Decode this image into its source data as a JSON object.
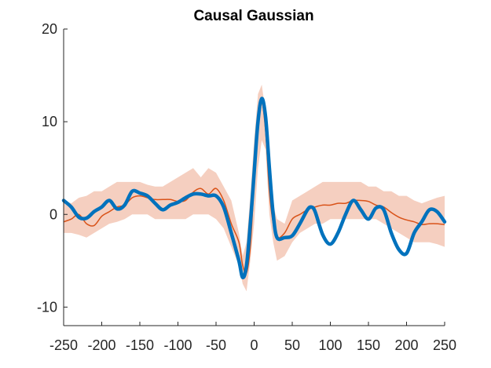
{
  "chart_data": {
    "type": "line",
    "title": "Causal Gaussian",
    "xlabel": "",
    "ylabel": "",
    "xlim": [
      -250,
      250
    ],
    "ylim": [
      -12,
      20
    ],
    "xticks": [
      -250,
      -200,
      -150,
      -100,
      -50,
      0,
      50,
      100,
      150,
      200,
      250
    ],
    "yticks": [
      -10,
      0,
      10,
      20
    ],
    "xtick_labels": [
      "-250",
      "-200",
      "-150",
      "-100",
      "-50",
      "0",
      "50",
      "100",
      "150",
      "200",
      "250"
    ],
    "ytick_labels": [
      "-10",
      "0",
      "10",
      "20"
    ],
    "grid": false,
    "legend": "none",
    "colors": {
      "mean_line": "#d95319",
      "band_fill": "#f5cfc0",
      "estimate_line": "#0072bd"
    },
    "band": {
      "x": [
        -250,
        -240,
        -230,
        -220,
        -210,
        -200,
        -190,
        -180,
        -170,
        -160,
        -150,
        -140,
        -130,
        -120,
        -110,
        -100,
        -90,
        -80,
        -70,
        -60,
        -50,
        -40,
        -30,
        -20,
        -15,
        -10,
        -5,
        0,
        5,
        10,
        15,
        20,
        25,
        30,
        40,
        50,
        60,
        70,
        80,
        90,
        100,
        110,
        120,
        130,
        140,
        150,
        160,
        170,
        180,
        190,
        200,
        210,
        220,
        230,
        240,
        250
      ],
      "upper": [
        1.5,
        1.2,
        1.8,
        2.0,
        2.5,
        2.5,
        3.0,
        3.5,
        3.5,
        3.5,
        3.5,
        3.2,
        3.0,
        3.0,
        3.5,
        4.0,
        4.5,
        5.0,
        4.0,
        5.0,
        4.5,
        3.0,
        1.5,
        -2.0,
        -4.5,
        -3.0,
        2.0,
        8.0,
        13.0,
        14.0,
        11.0,
        5.0,
        1.0,
        -0.5,
        -1.0,
        1.5,
        2.0,
        2.5,
        3.0,
        3.5,
        3.5,
        3.5,
        3.5,
        3.5,
        3.5,
        3.0,
        3.0,
        2.5,
        2.5,
        2.0,
        2.0,
        1.5,
        1.2,
        1.5,
        1.8,
        2.0
      ],
      "lower": [
        -2.0,
        -2.0,
        -2.2,
        -2.5,
        -2.0,
        -1.5,
        -1.0,
        -0.8,
        -0.5,
        0.0,
        0.0,
        0.0,
        -0.5,
        -0.5,
        -0.5,
        -0.5,
        -0.5,
        0.0,
        0.0,
        0.0,
        -0.5,
        -1.5,
        -3.5,
        -5.5,
        -7.5,
        -8.3,
        -5.0,
        -1.0,
        5.0,
        8.0,
        7.0,
        0.0,
        -3.0,
        -5.0,
        -4.5,
        -3.0,
        -2.0,
        -1.5,
        -1.0,
        -1.0,
        -0.5,
        -0.5,
        -0.5,
        -0.5,
        -0.5,
        -0.5,
        -0.5,
        -1.0,
        -1.5,
        -2.0,
        -2.5,
        -3.0,
        -3.0,
        -3.0,
        -3.2,
        -3.5
      ]
    },
    "series": [
      {
        "x": [
          -250,
          -240,
          -230,
          -220,
          -210,
          -200,
          -190,
          -180,
          -170,
          -160,
          -150,
          -140,
          -130,
          -120,
          -110,
          -100,
          -90,
          -80,
          -70,
          -60,
          -50,
          -40,
          -30,
          -20,
          -15,
          -10,
          -5,
          0,
          5,
          10,
          15,
          20,
          25,
          30,
          40,
          50,
          60,
          70,
          80,
          90,
          100,
          110,
          120,
          130,
          140,
          150,
          160,
          170,
          180,
          190,
          200,
          210,
          220,
          230,
          240,
          250
        ],
        "values": [
          -0.8,
          -0.5,
          0.0,
          -1.0,
          -1.2,
          -0.2,
          0.3,
          0.8,
          1.0,
          1.8,
          2.0,
          1.8,
          1.6,
          1.6,
          1.6,
          1.4,
          1.5,
          2.4,
          2.8,
          2.2,
          2.8,
          1.5,
          -1.0,
          -3.0,
          -5.5,
          -6.3,
          -3.5,
          3.5,
          9.0,
          12.0,
          9.0,
          2.5,
          -1.0,
          -2.5,
          -2.0,
          -0.5,
          0.0,
          0.5,
          0.8,
          1.0,
          1.0,
          1.2,
          1.2,
          1.5,
          1.5,
          1.4,
          1.0,
          0.8,
          0.2,
          -0.3,
          -0.6,
          -0.8,
          -1.1,
          -1.0,
          -1.0,
          -1.1
        ]
      },
      {
        "x": [
          -250,
          -240,
          -230,
          -220,
          -210,
          -200,
          -190,
          -180,
          -170,
          -160,
          -150,
          -140,
          -130,
          -120,
          -110,
          -100,
          -90,
          -80,
          -70,
          -60,
          -50,
          -40,
          -30,
          -20,
          -15,
          -10,
          -5,
          0,
          5,
          10,
          15,
          20,
          25,
          30,
          40,
          50,
          60,
          70,
          75,
          80,
          90,
          100,
          110,
          120,
          130,
          140,
          150,
          160,
          170,
          180,
          190,
          200,
          210,
          220,
          230,
          240,
          250
        ],
        "values": [
          1.5,
          0.8,
          -0.3,
          -0.4,
          0.3,
          0.8,
          1.5,
          0.6,
          1.0,
          2.5,
          2.3,
          2.0,
          1.2,
          0.5,
          1.0,
          1.3,
          1.8,
          2.2,
          2.2,
          2.0,
          2.0,
          0.8,
          -2.0,
          -5.0,
          -6.8,
          -5.5,
          -1.0,
          4.5,
          10.0,
          12.5,
          10.5,
          5.0,
          0.0,
          -2.5,
          -2.5,
          -2.3,
          -1.0,
          0.5,
          0.8,
          0.3,
          -2.2,
          -3.2,
          -2.0,
          0.0,
          1.5,
          0.5,
          -0.5,
          0.7,
          0.5,
          -2.0,
          -3.8,
          -4.2,
          -2.0,
          -0.8,
          0.5,
          0.3,
          -0.8
        ]
      }
    ]
  }
}
